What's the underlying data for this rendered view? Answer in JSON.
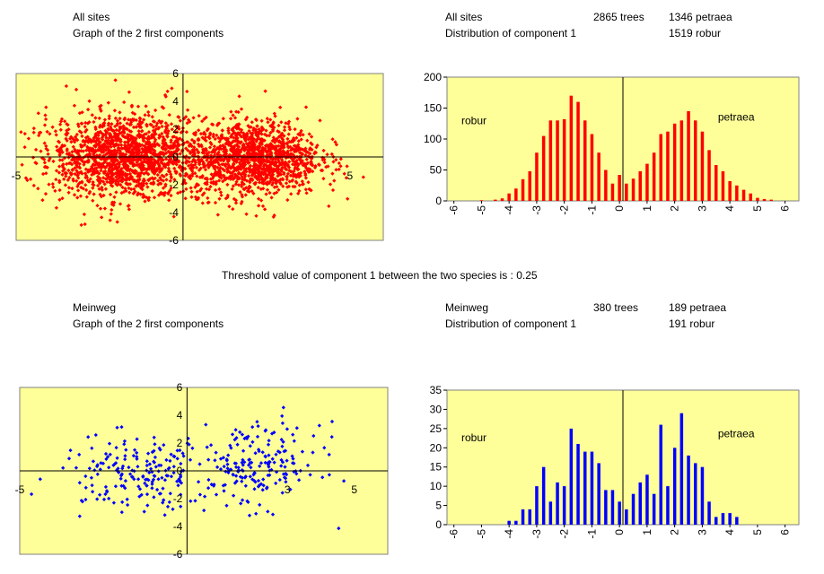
{
  "top": {
    "left_title": "All sites",
    "left_subtitle": "Graph of the 2 first components",
    "right_title": "All sites",
    "right_subtitle": "Distribution of component 1",
    "trees": "2865 trees",
    "petraea_count": "1346 petraea",
    "robur_count": "1519 robur"
  },
  "threshold_text": "Threshold value of component 1 between the two species is : 0.25",
  "bottom": {
    "left_title": "Meinweg",
    "left_subtitle": "Graph of the 2 first components",
    "right_title": "Meinweg",
    "right_subtitle": "Distribution of component 1",
    "trees": "380 trees",
    "petraea_count": "189 petraea",
    "robur_count": "191 robur"
  },
  "colors": {
    "plot_bg": "#ffff99",
    "red_series": "#ff0000",
    "blue_series": "#0000ff"
  },
  "chart_data": [
    {
      "type": "scatter",
      "title": "All sites",
      "subtitle": "Graph of the 2 first components",
      "xlim": [
        -5,
        6
      ],
      "ylim": [
        -6,
        6
      ],
      "x_tick_labels": [
        "-5",
        "5"
      ],
      "y_tick_labels": [
        "6",
        "4",
        "2",
        "0",
        "-2",
        "-4",
        "-6"
      ],
      "color": "#ff0000",
      "n_points": 2865,
      "clusters": [
        {
          "x_mean": -1.8,
          "x_sd": 1.1,
          "y_mean": 0.0,
          "y_sd": 1.45,
          "count": 1519
        },
        {
          "x_mean": 2.1,
          "x_sd": 1.0,
          "y_mean": -0.1,
          "y_sd": 1.35,
          "count": 1346
        }
      ]
    },
    {
      "type": "bar",
      "title": "All sites",
      "subtitle": "Distribution of component 1",
      "x_tick_labels": [
        "-6",
        "-5",
        "-4",
        "-3",
        "-2",
        "-1",
        "0",
        "1",
        "2",
        "3",
        "4",
        "5",
        "6"
      ],
      "ylim": [
        0,
        200
      ],
      "y_tick_labels": [
        "200",
        "150",
        "100",
        "50",
        "0"
      ],
      "annotations": [
        "robur",
        "petraea"
      ],
      "color": "#ff0000",
      "x": [
        -5.75,
        -5.5,
        -5.25,
        -5,
        -4.75,
        -4.5,
        -4.25,
        -4,
        -3.75,
        -3.5,
        -3.25,
        -3,
        -2.75,
        -2.5,
        -2.25,
        -2,
        -1.75,
        -1.5,
        -1.25,
        -1,
        -0.75,
        -0.5,
        -0.25,
        0,
        0.25,
        0.5,
        0.75,
        1,
        1.25,
        1.5,
        1.75,
        2,
        2.25,
        2.5,
        2.75,
        3,
        3.25,
        3.5,
        3.75,
        4,
        4.25,
        4.5,
        4.75,
        5,
        5.25,
        5.5,
        5.75,
        6
      ],
      "values": [
        0,
        0,
        0,
        1,
        0,
        2,
        4,
        12,
        20,
        35,
        48,
        78,
        105,
        130,
        130,
        132,
        170,
        160,
        130,
        108,
        78,
        50,
        28,
        42,
        28,
        36,
        48,
        60,
        78,
        108,
        112,
        125,
        130,
        145,
        130,
        112,
        82,
        58,
        48,
        32,
        25,
        18,
        12,
        5,
        3,
        2,
        0,
        0
      ]
    },
    {
      "type": "scatter",
      "title": "Meinweg",
      "subtitle": "Graph of the 2 first components",
      "xlim": [
        -5,
        6
      ],
      "ylim": [
        -6,
        6
      ],
      "x_tick_labels": [
        "-5",
        "3",
        "5"
      ],
      "y_tick_labels": [
        "6",
        "4",
        "2",
        "0",
        "-2",
        "-4",
        "-6"
      ],
      "color": "#0000ff",
      "n_points": 380,
      "clusters": [
        {
          "x_mean": -1.5,
          "x_sd": 1.15,
          "y_mean": -0.2,
          "y_sd": 1.3,
          "count": 191
        },
        {
          "x_mean": 2.1,
          "x_sd": 0.95,
          "y_mean": 0.4,
          "y_sd": 1.5,
          "count": 189
        }
      ]
    },
    {
      "type": "bar",
      "title": "Meinweg",
      "subtitle": "Distribution of component 1",
      "x_tick_labels": [
        "-6",
        "-5",
        "-4",
        "-3",
        "-2",
        "-1",
        "0",
        "1",
        "2",
        "3",
        "4",
        "5",
        "6"
      ],
      "ylim": [
        0,
        35
      ],
      "y_tick_labels": [
        "35",
        "30",
        "25",
        "20",
        "15",
        "10",
        "5",
        "0"
      ],
      "annotations": [
        "robur",
        "petraea"
      ],
      "color": "#0000ff",
      "x": [
        -4,
        -3.75,
        -3.5,
        -3.25,
        -3,
        -2.75,
        -2.5,
        -2.25,
        -2,
        -1.75,
        -1.5,
        -1.25,
        -1,
        -0.75,
        -0.5,
        -0.25,
        0,
        0.25,
        0.5,
        0.75,
        1,
        1.25,
        1.5,
        1.75,
        2,
        2.25,
        2.5,
        2.75,
        3,
        3.25,
        3.5,
        3.75,
        4,
        4.25
      ],
      "values": [
        1,
        1,
        4,
        4,
        10,
        15,
        6,
        11,
        10,
        25,
        21,
        19,
        19,
        16,
        9,
        9,
        6,
        4,
        8,
        11,
        13,
        8,
        26,
        10,
        20,
        29,
        18,
        16,
        15,
        6,
        2,
        3,
        3,
        2
      ]
    }
  ]
}
